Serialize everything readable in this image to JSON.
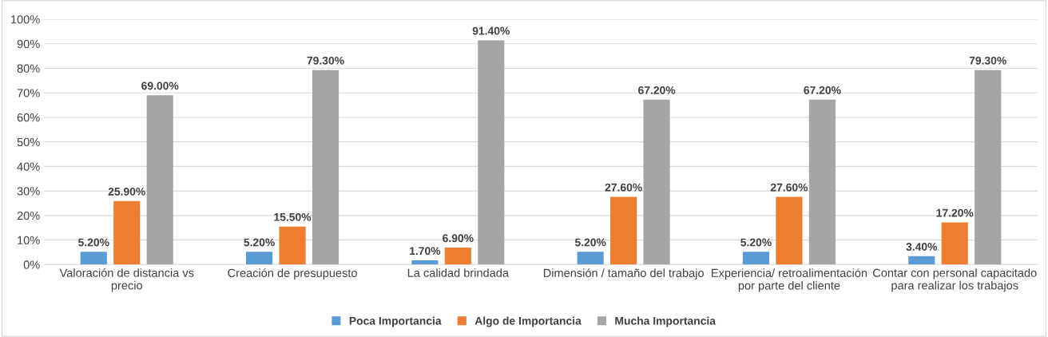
{
  "chart_data": {
    "type": "bar",
    "categories": [
      "Valoración de distancia vs\nprecio",
      "Creación de presupuesto",
      "La calidad brindada",
      "Dimensión / tamaño del trabajo",
      "Experiencia/ retroalimentación\npor parte del cliente",
      "Contar con personal capacitado\npara realizar los trabajos"
    ],
    "series": [
      {
        "name": "Poca Importancia",
        "color": "#5b9bd5",
        "values": [
          5.2,
          5.2,
          1.7,
          5.2,
          5.2,
          3.4
        ],
        "value_labels": [
          "5.20%",
          "5.20%",
          "1.70%",
          "5.20%",
          "5.20%",
          "3.40%"
        ]
      },
      {
        "name": "Algo de Importancia",
        "color": "#ed7d31",
        "values": [
          25.9,
          15.5,
          6.9,
          27.6,
          27.6,
          17.2
        ],
        "value_labels": [
          "25.90%",
          "15.50%",
          "6.90%",
          "27.60%",
          "27.60%",
          "17.20%"
        ]
      },
      {
        "name": "Mucha Importancia",
        "color": "#a5a5a5",
        "values": [
          69.0,
          79.3,
          91.4,
          67.2,
          67.2,
          79.3
        ],
        "value_labels": [
          "69.00%",
          "79.30%",
          "91.40%",
          "67.20%",
          "67.20%",
          "79.30%"
        ]
      }
    ],
    "ylim": [
      0,
      100
    ],
    "yticks": [
      {
        "value": 0,
        "label": "0%"
      },
      {
        "value": 10,
        "label": "10%"
      },
      {
        "value": 20,
        "label": "20%"
      },
      {
        "value": 30,
        "label": "30%"
      },
      {
        "value": 40,
        "label": "40%"
      },
      {
        "value": 50,
        "label": "50%"
      },
      {
        "value": 60,
        "label": "60%"
      },
      {
        "value": 70,
        "label": "70%"
      },
      {
        "value": 80,
        "label": "80%"
      },
      {
        "value": 90,
        "label": "90%"
      },
      {
        "value": 100,
        "label": "100%"
      }
    ],
    "grid": "y",
    "legend": "bottom"
  }
}
